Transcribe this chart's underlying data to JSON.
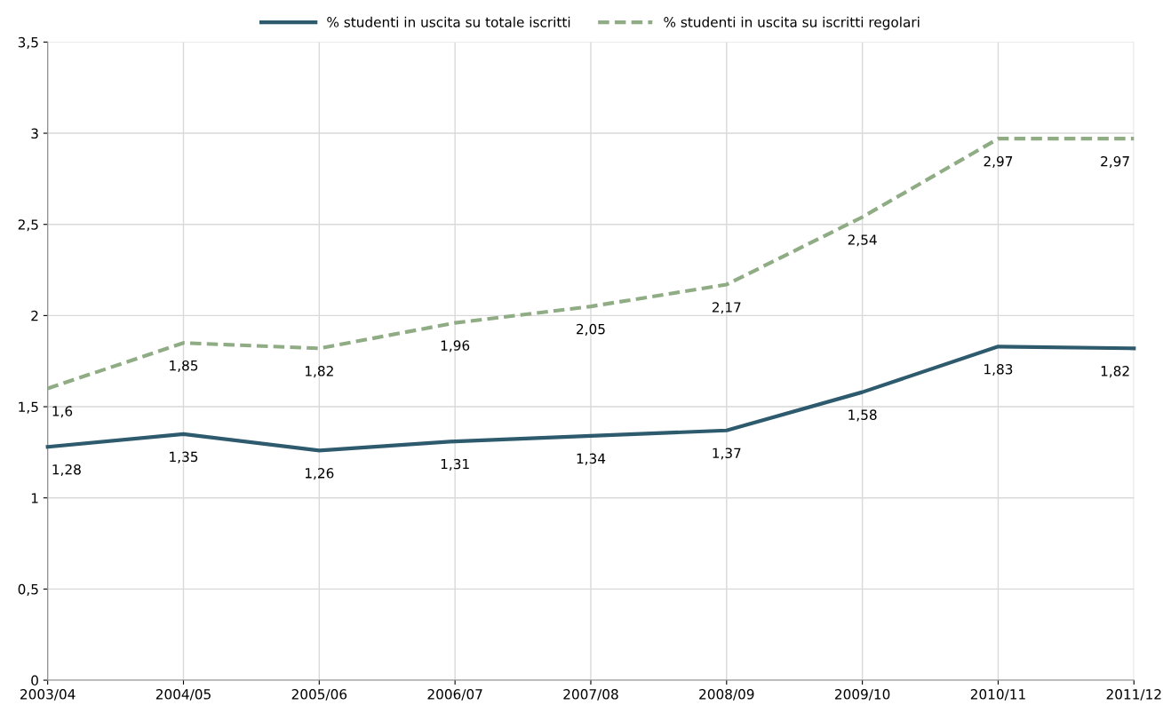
{
  "chart_data": {
    "type": "line",
    "categories": [
      "2003/04",
      "2004/05",
      "2005/06",
      "2006/07",
      "2007/08",
      "2008/09",
      "2009/10",
      "2010/11",
      "2011/12"
    ],
    "series": [
      {
        "name": "% studenti in uscita su totale iscritti",
        "color": "#2e5a6e",
        "line_style": "solid",
        "values": [
          1.28,
          1.35,
          1.26,
          1.31,
          1.34,
          1.37,
          1.58,
          1.83,
          1.82
        ],
        "value_labels": [
          "1,28",
          "1,35",
          "1,26",
          "1,31",
          "1,34",
          "1,37",
          "1,58",
          "1,83",
          "1,82"
        ]
      },
      {
        "name": "% studenti in uscita su iscritti regolari",
        "color": "#8fac84",
        "line_style": "dashed",
        "values": [
          1.6,
          1.85,
          1.82,
          1.96,
          2.05,
          2.17,
          2.54,
          2.97,
          2.97
        ],
        "value_labels": [
          "1,6",
          "1,85",
          "1,82",
          "1,96",
          "2,05",
          "2,17",
          "2,54",
          "2,97",
          "2,97"
        ]
      }
    ],
    "ylim": [
      0,
      3.5
    ],
    "yticks": [
      0,
      {
        "value": 0.5,
        "label": "0,5"
      },
      1,
      {
        "value": 1.5,
        "label": "1,5"
      },
      2,
      {
        "value": 2.5,
        "label": "2,5"
      },
      3,
      {
        "value": 3.5,
        "label": "3,5"
      }
    ],
    "grid": true,
    "legend": "top"
  }
}
